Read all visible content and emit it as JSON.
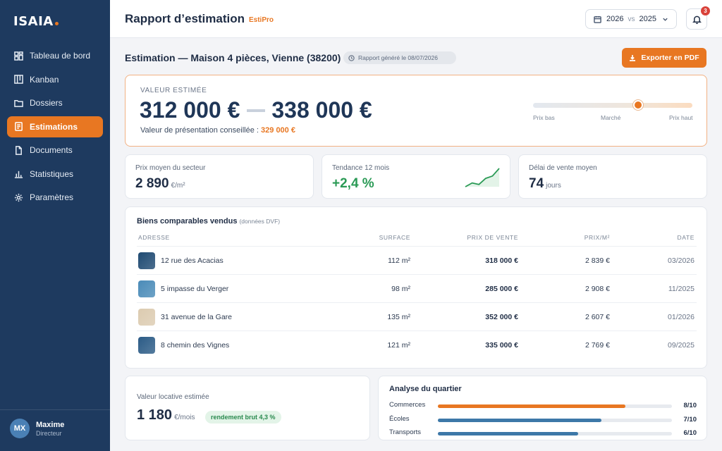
{
  "sidebar": {
    "logo": "ISAIA",
    "items": [
      {
        "label": "Tableau de bord",
        "icon": "dashboard-icon"
      },
      {
        "label": "Kanban",
        "icon": "kanban-icon"
      },
      {
        "label": "Dossiers",
        "icon": "folder-icon"
      },
      {
        "label": "Estimations",
        "icon": "estimation-icon",
        "active": true
      },
      {
        "label": "Documents",
        "icon": "document-icon"
      },
      {
        "label": "Statistiques",
        "icon": "bar-chart-icon"
      },
      {
        "label": "Paramètres",
        "icon": "gear-icon"
      }
    ],
    "user": {
      "initials": "MX",
      "name": "Maxime",
      "role": "Directeur"
    }
  },
  "header": {
    "title": "Rapport d’estimation",
    "brand": "EstiPro",
    "compare": {
      "year_a": "2026",
      "vs": "vs",
      "year_b": "2025"
    },
    "notifications": "3"
  },
  "report": {
    "title": "Estimation — Maison 4 pièces, Vienne (38200)",
    "generated": "Rapport généré le 08/07/2026",
    "export_label": "Exporter en PDF"
  },
  "estimate": {
    "label": "VALEUR ESTIMÉE",
    "low": "312 000 €",
    "high": "338 000 €",
    "advice_label": "Valeur de présentation conseillée :",
    "advice_value": "329 000 €",
    "slider": {
      "position": 0.66,
      "low_label": "Prix bas",
      "mid_label": "Marché",
      "high_label": "Prix haut"
    }
  },
  "kpis": {
    "sector_price": {
      "label": "Prix moyen du secteur",
      "value": "2 890",
      "unit": "€/m²"
    },
    "trend": {
      "label": "Tendance 12 mois",
      "value": "+2,4 %",
      "spark": [
        2,
        3,
        2.6,
        4.2,
        4.8,
        6.8
      ]
    },
    "delay": {
      "label": "Délai de vente moyen",
      "value": "74",
      "unit": "jours"
    }
  },
  "comparables": {
    "title": "Biens comparables vendus",
    "source": "(données DVF)",
    "headers": {
      "address": "ADRESSE",
      "surface": "SURFACE",
      "price": "PRIX DE VENTE",
      "ppm": "PRIX/M²",
      "date": "DATE"
    },
    "rows": [
      {
        "address": "12 rue des Acacias",
        "surface": "112 m²",
        "price": "318 000 €",
        "ppm": "2 839 €",
        "date": "03/2026",
        "thumb": "#1f4a72"
      },
      {
        "address": "5 impasse du Verger",
        "surface": "98 m²",
        "price": "285 000 €",
        "ppm": "2 908 €",
        "date": "11/2025",
        "thumb": "#4a8bb8"
      },
      {
        "address": "31 avenue de la Gare",
        "surface": "135 m²",
        "price": "352 000 €",
        "ppm": "2 607 €",
        "date": "01/2026",
        "thumb": "#dccbb0"
      },
      {
        "address": "8 chemin des Vignes",
        "surface": "121 m²",
        "price": "335 000 €",
        "ppm": "2 769 €",
        "date": "09/2025",
        "thumb": "#2b5b86"
      }
    ]
  },
  "rent": {
    "label": "Valeur locative estimée",
    "value": "1 180",
    "unit": "€/mois",
    "yield": "rendement brut 4,3 %"
  },
  "district": {
    "title": "Analyse du quartier",
    "items": [
      {
        "label": "Commerces",
        "score": "8/10",
        "value": 0.8,
        "color": "#e87722"
      },
      {
        "label": "Écoles",
        "score": "7/10",
        "value": 0.7,
        "color": "#3d78a8"
      },
      {
        "label": "Transports",
        "score": "6/10",
        "value": 0.6,
        "color": "#3d78a8"
      }
    ]
  }
}
